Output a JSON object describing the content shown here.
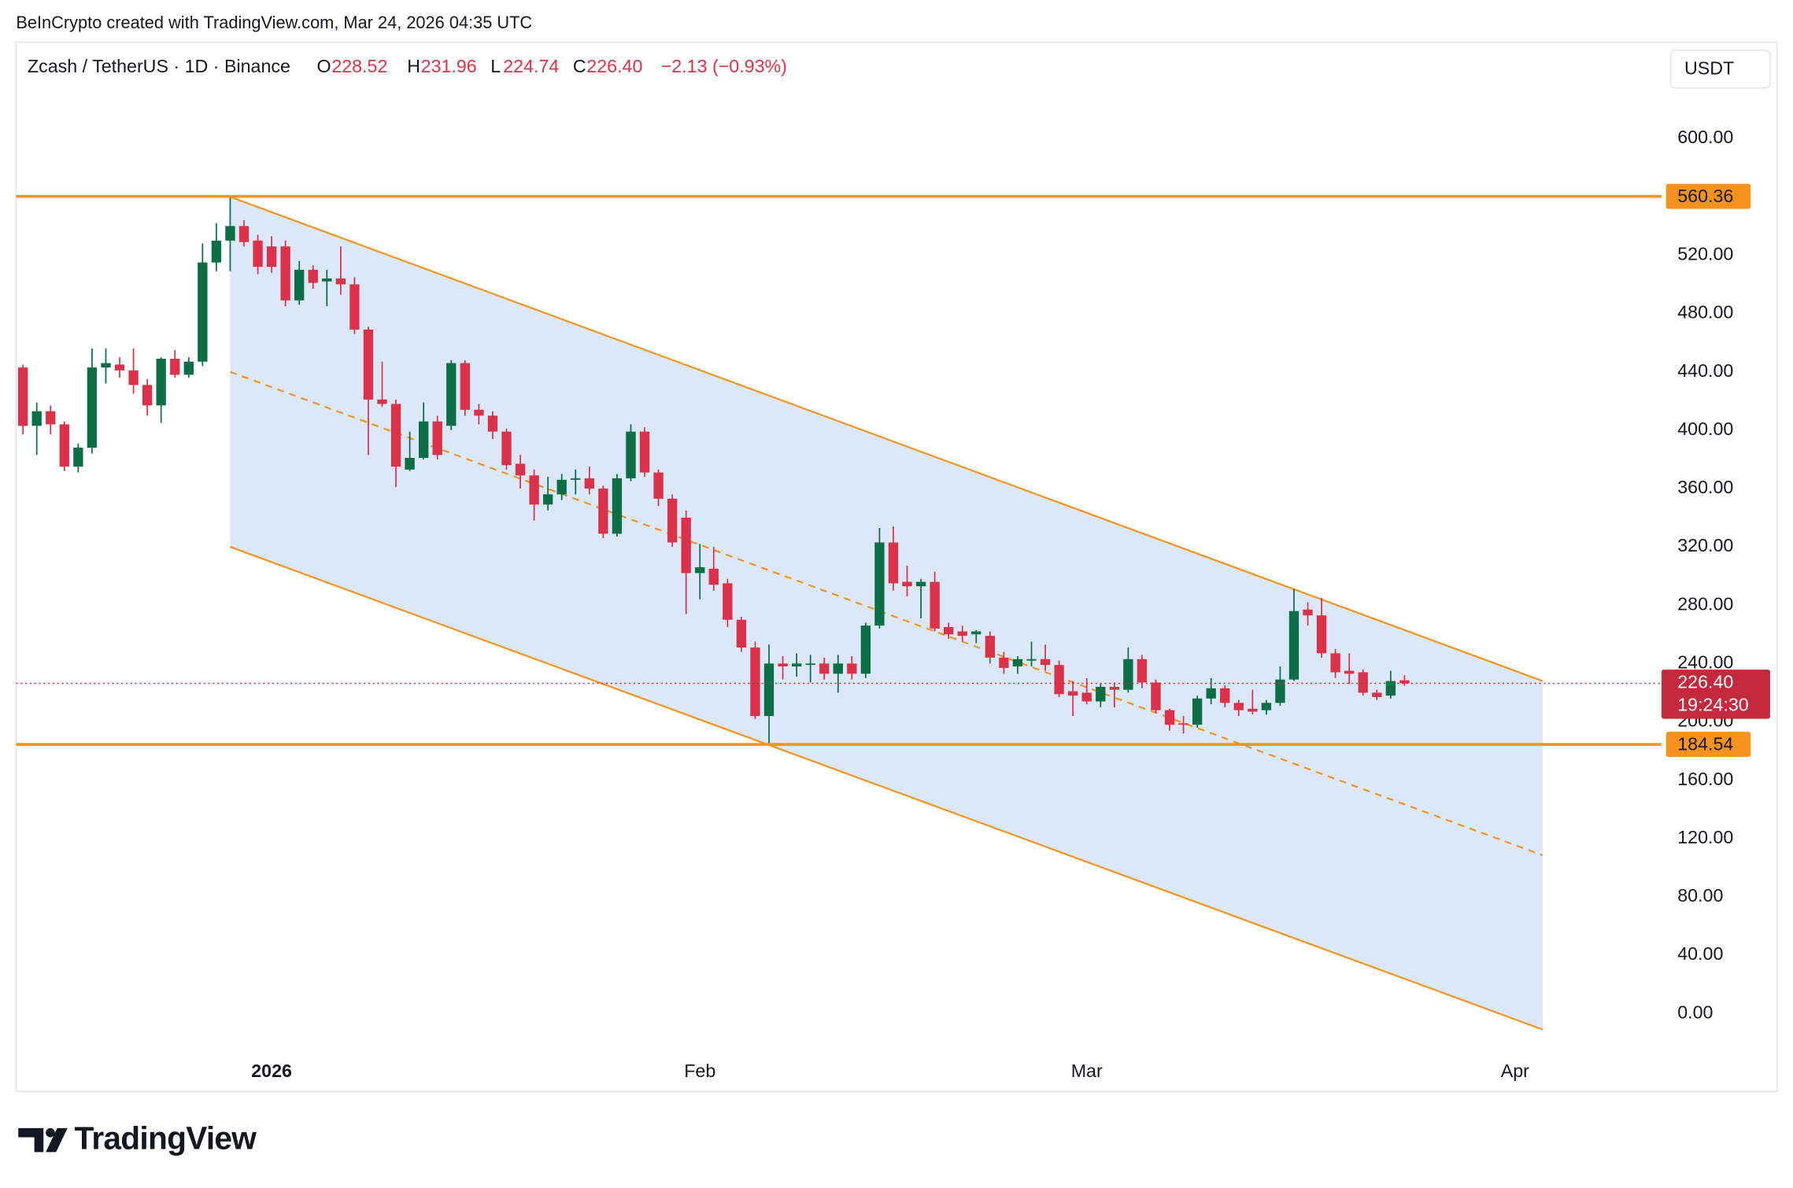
{
  "header": {
    "credit": "BeInCrypto created with TradingView.com, Mar 24, 2026 04:35 UTC"
  },
  "chart_data": {
    "type": "candlestick",
    "title": "Zcash / TetherUS · 1D · Binance",
    "ohlc_legend": [
      {
        "label": "O",
        "value": "228.52"
      },
      {
        "label": "H",
        "value": "231.96"
      },
      {
        "label": "L",
        "value": "224.74"
      },
      {
        "label": "C",
        "value": "226.40"
      }
    ],
    "change": "−2.13 (−0.93%)",
    "currency": "USDT",
    "open": [
      443,
      403,
      413,
      404,
      375,
      388,
      443,
      445,
      441,
      431,
      417,
      449,
      438,
      447,
      515,
      530,
      540,
      530,
      526,
      526,
      489,
      510,
      502,
      504,
      500,
      469,
      421,
      418,
      373,
      381,
      406,
      403,
      446,
      414,
      410,
      399,
      377,
      369,
      349,
      356,
      366,
      367,
      360,
      329,
      367,
      399,
      371,
      353,
      340,
      302,
      305,
      295,
      270,
      251,
      204,
      240,
      238,
      240,
      240,
      233,
      240,
      233,
      266,
      323,
      296,
      293,
      296,
      265,
      262,
      260,
      259,
      244,
      238,
      242,
      243,
      239,
      221,
      220,
      214,
      224,
      222,
      243,
      227,
      208,
      199,
      198,
      216,
      223,
      213,
      209,
      208,
      213,
      229,
      277,
      273,
      247,
      235,
      234,
      220,
      218,
      228.52
    ],
    "high": [
      445,
      419,
      417,
      406,
      391,
      456,
      456,
      450,
      456,
      435,
      450,
      455,
      450,
      528,
      542,
      560,
      544,
      534,
      533,
      530,
      516,
      513,
      510,
      526,
      505,
      471,
      447,
      421,
      399,
      419,
      410,
      448,
      448,
      418,
      413,
      401,
      383,
      373,
      368,
      370,
      373,
      375,
      362,
      370,
      404,
      402,
      373,
      356,
      345,
      322,
      320,
      298,
      272,
      255,
      253,
      245,
      247,
      246,
      244,
      246,
      245,
      268,
      333,
      334,
      307,
      298,
      303,
      268,
      266,
      263,
      262,
      248,
      245,
      255,
      253,
      242,
      228,
      230,
      226,
      227,
      251,
      246,
      229,
      209,
      204,
      218,
      230,
      225,
      215,
      222,
      215,
      238,
      291,
      282,
      285,
      250,
      247,
      236,
      222,
      235,
      231.96
    ],
    "low": [
      397,
      383,
      397,
      372,
      371,
      384,
      432,
      436,
      425,
      410,
      405,
      436,
      436,
      444,
      509,
      509,
      526,
      507,
      508,
      485,
      486,
      497,
      485,
      493,
      466,
      383,
      416,
      361,
      372,
      380,
      380,
      400,
      410,
      404,
      394,
      373,
      360,
      338,
      345,
      352,
      356,
      356,
      326,
      327,
      365,
      368,
      348,
      320,
      274,
      284,
      290,
      265,
      248,
      202,
      184.5,
      229,
      231,
      227,
      229,
      220,
      229,
      230,
      264,
      290,
      286,
      271,
      262,
      257,
      255,
      254,
      240,
      233,
      233,
      238,
      235,
      217,
      204,
      212,
      210,
      210,
      220,
      223,
      206,
      194,
      192,
      196,
      212,
      210,
      204,
      205,
      205,
      211,
      228,
      266,
      244,
      230,
      226,
      218,
      215,
      216,
      224.74
    ],
    "close": [
      403,
      413,
      404,
      375,
      388,
      443,
      446,
      441,
      431,
      417,
      449,
      438,
      447,
      515,
      530,
      540,
      529,
      512,
      512,
      489,
      510,
      501,
      504,
      500,
      469,
      421,
      418,
      375,
      381,
      406,
      383,
      446,
      414,
      410,
      399,
      376,
      369,
      349,
      356,
      366,
      367,
      360,
      329,
      367,
      399,
      371,
      353,
      323,
      302,
      306,
      294,
      270,
      251,
      204,
      240,
      238,
      240,
      240,
      233,
      240,
      233,
      266,
      323,
      295,
      293,
      296,
      264,
      260,
      259,
      262,
      244,
      237,
      243,
      243,
      239,
      219,
      218,
      214,
      224,
      222,
      243,
      227,
      208,
      198,
      198,
      216,
      223,
      213,
      208,
      207,
      213,
      229,
      276,
      273,
      247,
      234,
      233,
      220,
      217,
      228,
      226.4
    ],
    "up_color": "#0b6e45",
    "down_color": "#dc3249",
    "xlim": [
      -0.5,
      118.6
    ],
    "xticks": [
      {
        "value": 18,
        "label": "2026"
      },
      {
        "value": 49,
        "label": "Feb"
      },
      {
        "value": 77,
        "label": "Mar"
      },
      {
        "value": 108,
        "label": "Apr"
      }
    ],
    "ylim": [
      -30,
      666
    ],
    "yticks": [
      {
        "value": 0,
        "label": "0.00"
      },
      {
        "value": 40,
        "label": "40.00"
      },
      {
        "value": 80,
        "label": "80.00"
      },
      {
        "value": 120,
        "label": "120.00"
      },
      {
        "value": 160,
        "label": "160.00"
      },
      {
        "value": 200,
        "label": "200.00"
      },
      {
        "value": 240,
        "label": "240.00"
      },
      {
        "value": 280,
        "label": "280.00"
      },
      {
        "value": 320,
        "label": "320.00"
      },
      {
        "value": 360,
        "label": "360.00"
      },
      {
        "value": 400,
        "label": "400.00"
      },
      {
        "value": 440,
        "label": "440.00"
      },
      {
        "value": 480,
        "label": "480.00"
      },
      {
        "value": 520,
        "label": "520.00"
      },
      {
        "value": 560,
        "label": "560.00"
      },
      {
        "value": 600,
        "label": "600.00"
      }
    ],
    "levels": [
      {
        "value": 560.36,
        "label": "560.36",
        "color": "#f7931a"
      },
      {
        "value": 184.54,
        "label": "184.54",
        "color": "#f7931a"
      }
    ],
    "last_price": {
      "value": 226.4,
      "label": "226.40",
      "countdown": "19:24:30",
      "color": "#c4283a"
    },
    "channel": {
      "x": [
        15,
        110
      ],
      "upper": [
        560,
        228
      ],
      "middle": [
        440,
        108.5
      ],
      "lower": [
        320,
        -11
      ],
      "color": "#f7931a",
      "fill": "#dbe8fa"
    }
  },
  "footer": {
    "logo": "TradingView"
  }
}
